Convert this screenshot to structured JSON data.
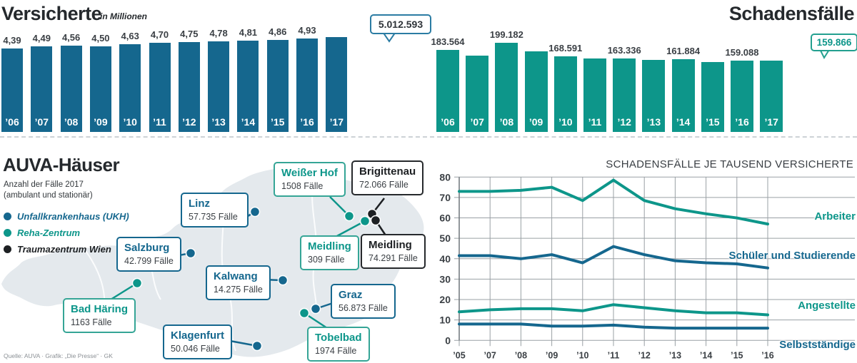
{
  "meta": {
    "source_credit": "Quelle: AUVA · Grafik: „Die Presse“ · GK"
  },
  "colors": {
    "blue": "#15678e",
    "teal": "#0d968a",
    "black": "#1d2023",
    "grid": "#9aa0a5",
    "map_fill": "#e4e9ed"
  },
  "chart_data": [
    {
      "id": "versicherte",
      "type": "bar",
      "title": "Versicherte",
      "subtitle": "in Millionen",
      "categories": [
        "’06",
        "’07",
        "’08",
        "’09",
        "’10",
        "’11",
        "’12",
        "’13",
        "’14",
        "’15",
        "’16",
        "’17"
      ],
      "values": [
        4.39,
        4.49,
        4.56,
        4.5,
        4.63,
        4.7,
        4.75,
        4.78,
        4.81,
        4.86,
        4.93,
        5.012593
      ],
      "bar_labels": [
        "4,39",
        "4,49",
        "4,56",
        "4,50",
        "4,63",
        "4,70",
        "4,75",
        "4,78",
        "4,81",
        "4,86",
        "4,93",
        null
      ],
      "callout": "5.012.593",
      "bar_color": "blue",
      "ylabel": "",
      "grid": false
    },
    {
      "id": "schadensfaelle",
      "type": "bar",
      "title": "Schadensfälle",
      "categories": [
        "’06",
        "’07",
        "’08",
        "’09",
        "’10",
        "’11",
        "’12",
        "’13",
        "’14",
        "’15",
        "’16",
        "’17"
      ],
      "values": [
        183564,
        null,
        199182,
        null,
        168591,
        null,
        163336,
        null,
        161884,
        null,
        159088,
        159866
      ],
      "bar_labels": [
        "183.564",
        null,
        "199.182",
        null,
        "168.591",
        null,
        "163.336",
        null,
        "161.884",
        null,
        "159.088",
        null
      ],
      "callout": "159.866",
      "bar_color": "teal",
      "grid": false
    },
    {
      "id": "rate",
      "type": "line",
      "title": "SCHADENSFÄLLE JE TAUSEND VERSICHERTE",
      "x": [
        "’05",
        "’07",
        "’08",
        "’09",
        "’10",
        "’11",
        "’12",
        "’13",
        "’14",
        "’15",
        "’16"
      ],
      "ylim": [
        0,
        80
      ],
      "yticks": [
        "80",
        "70",
        "60",
        "50",
        "40",
        "30",
        "20",
        "10",
        "0"
      ],
      "grid": true,
      "legend_position": "right-inline",
      "series": [
        {
          "name": "Arbeiter",
          "color_key": "teal",
          "values": [
            73,
            73,
            73.5,
            75,
            68.5,
            78.5,
            68.5,
            64.5,
            62,
            60,
            57
          ]
        },
        {
          "name": "Schüler und Studierende",
          "color_key": "blue",
          "values": [
            41.5,
            41.5,
            40,
            42,
            38,
            46,
            42,
            39,
            38,
            37.5,
            35.5
          ]
        },
        {
          "name": "Angestellte",
          "color_key": "teal",
          "values": [
            14,
            15,
            15.5,
            15.5,
            14.5,
            17.5,
            16,
            14.5,
            13.5,
            13.5,
            12.5
          ]
        },
        {
          "name": "Selbstständige",
          "color_key": "blue",
          "values": [
            8,
            8,
            8,
            7,
            7,
            7.5,
            6.5,
            6,
            6,
            6,
            6
          ]
        }
      ]
    }
  ],
  "map": {
    "title": "AUVA-Häuser",
    "subtitle_line1": "Anzahl der Fälle 2017",
    "subtitle_line2": "(ambulant und stationär)",
    "legend": [
      {
        "label": "Unfallkrankenhaus (UKH)",
        "color_key": "blue"
      },
      {
        "label": "Reha-Zentrum",
        "color_key": "teal"
      },
      {
        "label": "Traumazentrum Wien",
        "color_key": "black"
      }
    ],
    "locations": [
      {
        "name": "Linz",
        "cases": "57.735 Fälle",
        "type": "blue"
      },
      {
        "name": "Salzburg",
        "cases": "42.799 Fälle",
        "type": "blue"
      },
      {
        "name": "Bad Häring",
        "cases": "1163 Fälle",
        "type": "teal"
      },
      {
        "name": "Kalwang",
        "cases": "14.275 Fälle",
        "type": "blue"
      },
      {
        "name": "Klagenfurt",
        "cases": "50.046 Fälle",
        "type": "blue"
      },
      {
        "name": "Weißer Hof",
        "cases": "1508 Fälle",
        "type": "teal"
      },
      {
        "name": "Brigittenau",
        "cases": "72.066 Fälle",
        "type": "black"
      },
      {
        "name": "Meidling",
        "cases": "309 Fälle",
        "type": "teal"
      },
      {
        "name": "Meidling",
        "cases": "74.291 Fälle",
        "type": "black"
      },
      {
        "name": "Graz",
        "cases": "56.873 Fälle",
        "type": "blue"
      },
      {
        "name": "Tobelbad",
        "cases": "1974 Fälle",
        "type": "teal"
      }
    ]
  }
}
